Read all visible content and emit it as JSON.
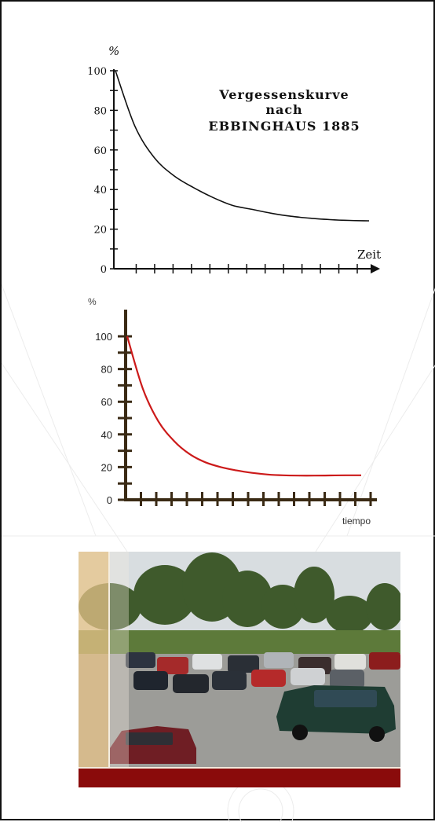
{
  "colors": {
    "frame": "#111111",
    "curve1": "#111111",
    "curve2": "#cc1a1a",
    "axis2": "#3a2a14",
    "photo_bar": "#8a0b0b"
  },
  "chart_data": [
    {
      "type": "line",
      "title": "Vergessenskurve nach EBBINGHAUS 1885",
      "title_lines": [
        "Vergessenskurve",
        "nach",
        "EBBINGHAUS 1885"
      ],
      "ylabel": "%",
      "xlabel": "Zeit",
      "ylim": [
        0,
        100
      ],
      "yticks": [
        "0",
        "20",
        "40",
        "60",
        "80",
        "100"
      ],
      "x_tick_count": 13,
      "x_arrow": true,
      "grid": false,
      "series": [
        {
          "x": [
            0,
            1,
            2,
            3,
            4,
            5,
            6,
            7,
            8,
            9,
            10,
            11,
            12,
            13
          ],
          "values": [
            100,
            72,
            56,
            47,
            41,
            36,
            32,
            30,
            28,
            26.5,
            25.5,
            24.8,
            24.4,
            24.2
          ]
        }
      ]
    },
    {
      "type": "line",
      "ylabel": "%",
      "xlabel": "tiempo",
      "ylim": [
        0,
        100
      ],
      "yticks": [
        "0",
        "20",
        "40",
        "60",
        "80",
        "100"
      ],
      "x_tick_count": 16,
      "grid": false,
      "series": [
        {
          "x": [
            0,
            1,
            2,
            3,
            4,
            5,
            6,
            7,
            8,
            9,
            10,
            11,
            12,
            13,
            14,
            15
          ],
          "values": [
            100,
            68,
            48,
            36,
            28,
            23,
            20,
            18,
            16.5,
            15.5,
            15,
            14.8,
            14.8,
            14.9,
            15,
            15
          ]
        }
      ]
    }
  ],
  "photo": {
    "description_icon": "parking-lot-photo"
  }
}
